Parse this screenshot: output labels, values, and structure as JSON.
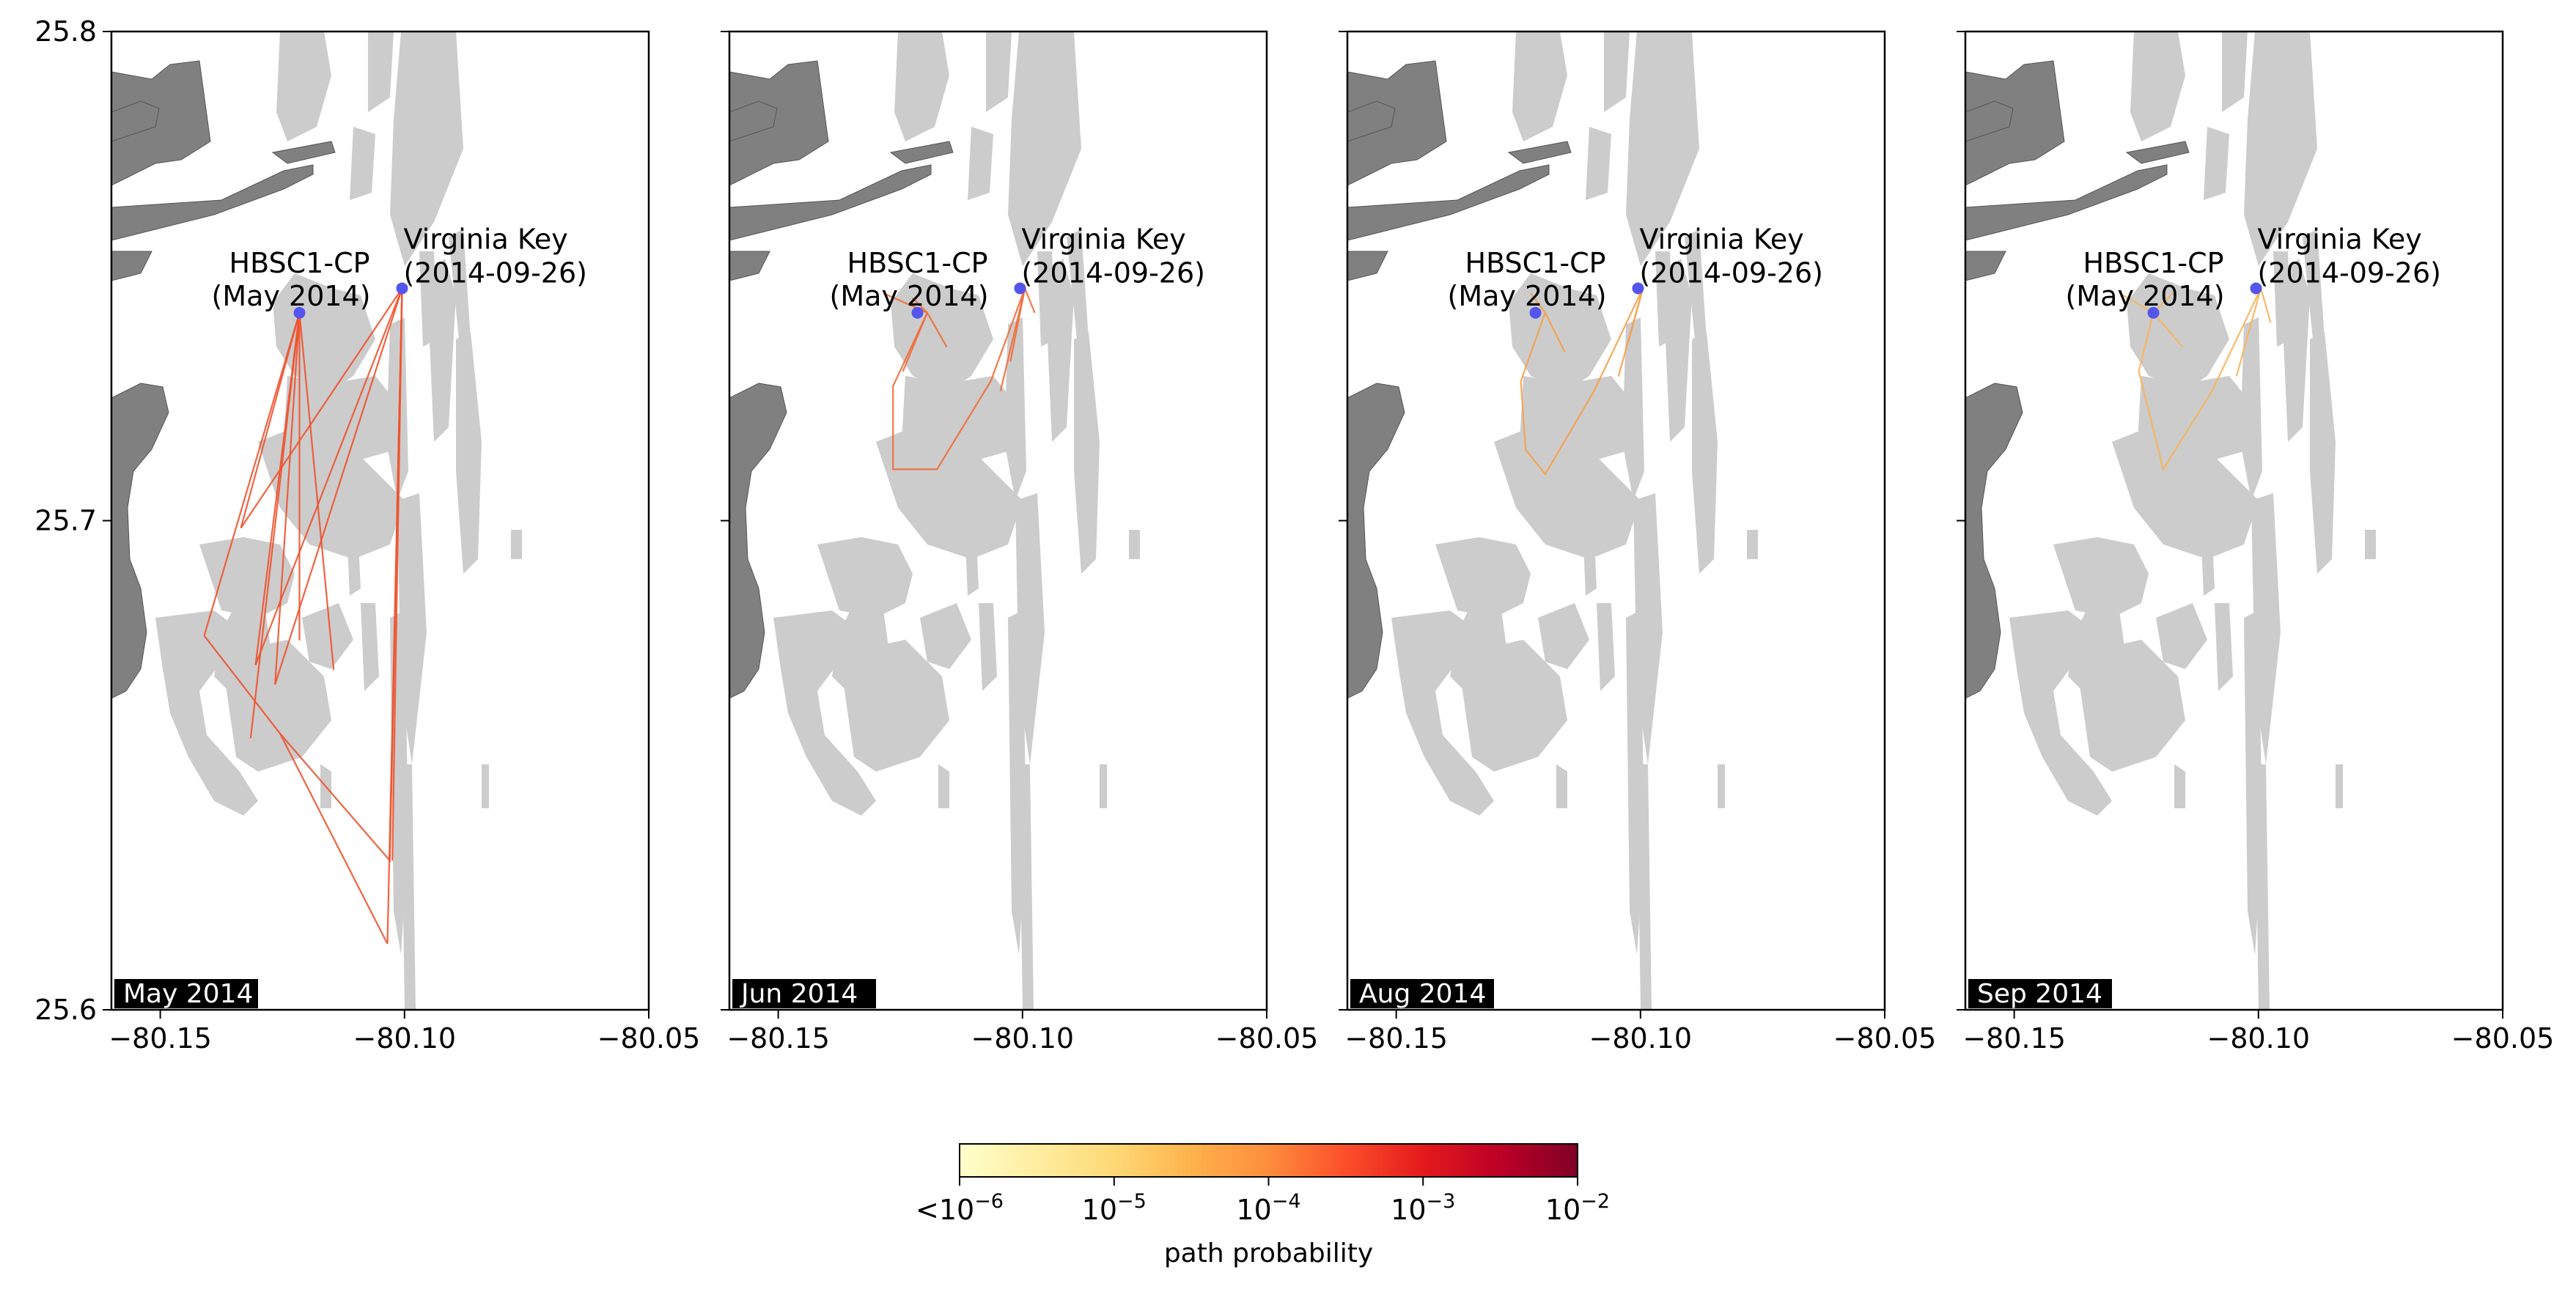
{
  "chart_data": {
    "type": "map-paths",
    "panels": [
      {
        "label": "May 2014",
        "paths": [
          [
            [
              -80.1215,
              25.7425
            ],
            [
              -80.141,
              25.6765
            ],
            [
              -80.1215,
              25.7425
            ]
          ],
          [
            [
              -80.1215,
              25.7425
            ],
            [
              -80.1315,
              25.6555
            ],
            [
              -80.1215,
              25.7425
            ]
          ],
          [
            [
              -80.1215,
              25.7425
            ],
            [
              -80.1265,
              25.6665
            ],
            [
              -80.1215,
              25.7425
            ]
          ],
          [
            [
              -80.1215,
              25.7425
            ],
            [
              -80.1215,
              25.6755
            ],
            [
              -80.1215,
              25.7425
            ]
          ],
          [
            [
              -80.1215,
              25.7425
            ],
            [
              -80.1145,
              25.6695
            ],
            [
              -80.1215,
              25.7425
            ]
          ],
          [
            [
              -80.1215,
              25.7425
            ],
            [
              -80.1305,
              25.6705
            ],
            [
              -80.1215,
              25.7425
            ]
          ],
          [
            [
              -80.1215,
              25.7425
            ],
            [
              -80.1335,
              25.6985
            ],
            [
              -80.1215,
              25.7425
            ]
          ],
          [
            [
              -80.141,
              25.6765
            ],
            [
              -80.1255,
              25.6565
            ],
            [
              -80.103,
              25.6305
            ],
            [
              -80.1005,
              25.7475
            ]
          ],
          [
            [
              -80.1255,
              25.6565
            ],
            [
              -80.1035,
              25.6135
            ],
            [
              -80.1005,
              25.7475
            ]
          ],
          [
            [
              -80.1305,
              25.6705
            ],
            [
              -80.1005,
              25.7475
            ]
          ],
          [
            [
              -80.1265,
              25.6665
            ],
            [
              -80.1005,
              25.7475
            ]
          ],
          [
            [
              -80.1335,
              25.6985
            ],
            [
              -80.1005,
              25.7475
            ]
          ],
          [
            [
              -80.1005,
              25.7475
            ],
            [
              -80.1025,
              25.6305
            ]
          ],
          [
            [
              -80.1005,
              25.7475
            ],
            [
              -80.1015,
              25.7025
            ]
          ]
        ]
      },
      {
        "label": "Jun 2014",
        "paths": [
          [
            [
              -80.1195,
              25.7425
            ],
            [
              -80.1225,
              25.7455
            ]
          ],
          [
            [
              -80.1195,
              25.7425
            ],
            [
              -80.1265,
              25.7275
            ],
            [
              -80.1265,
              25.7105
            ],
            [
              -80.1175,
              25.7105
            ],
            [
              -80.1065,
              25.7285
            ],
            [
              -80.0995,
              25.7475
            ]
          ],
          [
            [
              -80.1195,
              25.7425
            ],
            [
              -80.1245,
              25.7305
            ]
          ],
          [
            [
              -80.1195,
              25.7425
            ],
            [
              -80.1155,
              25.7355
            ]
          ],
          [
            [
              -80.1195,
              25.7425
            ],
            [
              -80.1285,
              25.7465
            ]
          ],
          [
            [
              -80.0995,
              25.7475
            ],
            [
              -80.1045,
              25.7265
            ]
          ],
          [
            [
              -80.0995,
              25.7475
            ],
            [
              -80.1025,
              25.7325
            ]
          ],
          [
            [
              -80.0995,
              25.7475
            ],
            [
              -80.0975,
              25.7425
            ]
          ]
        ]
      },
      {
        "label": "Aug 2014",
        "paths": [
          [
            [
              -80.1195,
              25.7425
            ],
            [
              -80.1245,
              25.7285
            ],
            [
              -80.1235,
              25.7145
            ],
            [
              -80.1195,
              25.7095
            ],
            [
              -80.1095,
              25.7265
            ],
            [
              -80.0995,
              25.7475
            ]
          ],
          [
            [
              -80.1195,
              25.7425
            ],
            [
              -80.1155,
              25.7345
            ]
          ],
          [
            [
              -80.1195,
              25.7425
            ],
            [
              -80.1225,
              25.7465
            ]
          ],
          [
            [
              -80.0995,
              25.7475
            ],
            [
              -80.1045,
              25.7295
            ]
          ],
          [
            [
              -80.0995,
              25.7475
            ],
            [
              -80.1025,
              25.7365
            ]
          ]
        ]
      },
      {
        "label": "Sep 2014",
        "paths": [
          [
            [
              -80.1215,
              25.7425
            ],
            [
              -80.1245,
              25.7305
            ],
            [
              -80.1195,
              25.7105
            ],
            [
              -80.1095,
              25.7265
            ],
            [
              -80.0995,
              25.7475
            ]
          ],
          [
            [
              -80.1215,
              25.7425
            ],
            [
              -80.1155,
              25.7355
            ]
          ],
          [
            [
              -80.1215,
              25.7425
            ],
            [
              -80.1285,
              25.7465
            ]
          ],
          [
            [
              -80.1215,
              25.7425
            ],
            [
              -80.1175,
              25.7465
            ]
          ],
          [
            [
              -80.0995,
              25.7475
            ],
            [
              -80.1045,
              25.7295
            ]
          ],
          [
            [
              -80.0995,
              25.7475
            ],
            [
              -80.0975,
              25.7405
            ]
          ]
        ]
      }
    ],
    "sites": [
      {
        "label_line1": "HBSC1-CP",
        "label_line2": "(May 2014)",
        "lon": -80.1215,
        "lat": 25.7425,
        "color": "#5555ee"
      },
      {
        "label_line1": "Virginia Key",
        "label_line2": "(2014-09-26)",
        "lon": -80.1005,
        "lat": 25.7475,
        "color": "#5555ee"
      }
    ],
    "xlim": [
      -80.16,
      -80.05
    ],
    "ylim": [
      25.6,
      25.8
    ],
    "xticks": [
      -80.15,
      -80.1,
      -80.05
    ],
    "xtick_labels": [
      "−80.15",
      "−80.10",
      "−80.05"
    ],
    "yticks": [
      25.6,
      25.7,
      25.8
    ],
    "ytick_labels": [
      "25.6",
      "25.7",
      "25.8"
    ],
    "path_colors": [
      "#f0522d",
      "#f26b36",
      "#f7a04a",
      "#f9b35a"
    ],
    "colorbar": {
      "label": "path probability",
      "scale": "log",
      "colormap": "YlOrRd",
      "colors": [
        "#ffffcc",
        "#ffeda0",
        "#fed976",
        "#feb24c",
        "#fd8d3c",
        "#fc4e2a",
        "#e31a1c",
        "#bd0026",
        "#800026"
      ],
      "ticks": [
        {
          "base": "<10",
          "exp": "−6"
        },
        {
          "base": "10",
          "exp": "−5"
        },
        {
          "base": "10",
          "exp": "−4"
        },
        {
          "base": "10",
          "exp": "−3"
        },
        {
          "base": "10",
          "exp": "−2"
        }
      ]
    },
    "map_colors": {
      "land": "#808080",
      "seagrass": "#cccccc",
      "water": "#ffffff"
    }
  }
}
